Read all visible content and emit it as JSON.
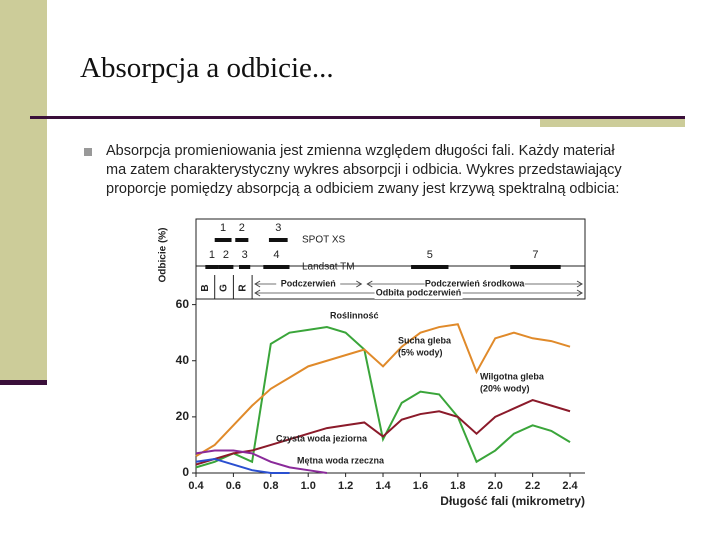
{
  "title": "Absorpcja a odbicie...",
  "bullet": [
    "Absorpcja promieniowania jest zmienna względem długości fali. Każdy materiał",
    "ma zatem charakterystyczny wykres absorpcji i odbicia. Wykres przedstawiający",
    "proporcje pomiędzy absorpcją a odbiciem zwany jest krzywą spektralną odbicia:"
  ],
  "chart_data": {
    "type": "line",
    "xlabel": "Długość fali (mikrometry)",
    "ylabel": "Odbicie (%)",
    "x": [
      0.4,
      0.5,
      0.6,
      0.7,
      0.8,
      0.9,
      1.0,
      1.1,
      1.2,
      1.3,
      1.4,
      1.5,
      1.6,
      1.7,
      1.8,
      1.9,
      2.0,
      2.1,
      2.2,
      2.3,
      2.4
    ],
    "xlim": [
      0.4,
      2.48
    ],
    "ylim": [
      0,
      62
    ],
    "xticks": [
      0.4,
      0.6,
      0.8,
      {
        "value": 1.0,
        "label": "1.0"
      },
      1.2,
      1.4,
      1.6,
      1.8,
      {
        "value": 2.0,
        "label": "2.0"
      },
      2.2,
      2.4
    ],
    "yticks": [
      0,
      20,
      40,
      60
    ],
    "series": [
      {
        "name": "Roślinność",
        "color": "#3aa53a",
        "values": [
          2,
          4,
          7,
          4,
          46,
          50,
          51,
          52,
          50,
          44,
          12,
          25,
          29,
          28,
          20,
          4,
          8,
          14,
          17,
          15,
          11
        ]
      },
      {
        "name": "Sucha gleba",
        "note": "(5% wody)",
        "color": "#e08a2a",
        "values": [
          6,
          10,
          17,
          24,
          30,
          34,
          38,
          40,
          42,
          44,
          38,
          45,
          50,
          52,
          53,
          36,
          48,
          50,
          48,
          47,
          45
        ]
      },
      {
        "name": "Wilgotna gleba",
        "note": "(20% wody)",
        "color": "#8b1a2a",
        "values": [
          3,
          5,
          7,
          8,
          10,
          12,
          14,
          16,
          17,
          18,
          13,
          19,
          21,
          22,
          20,
          14,
          20,
          23,
          26,
          24,
          22
        ]
      },
      {
        "name": "Czysta woda jeziorna",
        "color": "#2a4fd0",
        "values": [
          4,
          5,
          3,
          1,
          0,
          0,
          null,
          null,
          null,
          null,
          null,
          null,
          null,
          null,
          null,
          null,
          null,
          null,
          null,
          null,
          null
        ]
      },
      {
        "name": "Mętna woda rzeczna",
        "color": "#8a2a9a",
        "values": [
          7,
          8,
          8,
          7,
          4,
          2,
          1,
          0,
          null,
          null,
          null,
          null,
          null,
          null,
          null,
          null,
          null,
          null,
          null,
          null,
          null
        ]
      }
    ],
    "bands": [
      {
        "sensor": "SPOT XS",
        "items": [
          {
            "label": "1",
            "start": 0.5,
            "end": 0.59
          },
          {
            "label": "2",
            "start": 0.61,
            "end": 0.68
          },
          {
            "label": "3",
            "start": 0.79,
            "end": 0.89
          }
        ]
      },
      {
        "sensor": "Landsat TM",
        "items": [
          {
            "label": "1",
            "start": 0.45,
            "end": 0.52
          },
          {
            "label": "2",
            "start": 0.52,
            "end": 0.6
          },
          {
            "label": "3",
            "start": 0.63,
            "end": 0.69
          },
          {
            "label": "4",
            "start": 0.76,
            "end": 0.9
          },
          {
            "label": "5",
            "start": 1.55,
            "end": 1.75
          },
          {
            "label": "7",
            "start": 2.08,
            "end": 2.35
          }
        ]
      }
    ],
    "colors": [
      {
        "label": "B",
        "start": 0.4,
        "end": 0.5
      },
      {
        "label": "G",
        "start": 0.5,
        "end": 0.6
      },
      {
        "label": "R",
        "start": 0.6,
        "end": 0.7
      }
    ],
    "regions": [
      {
        "label": "Podczerwień",
        "start": 0.7,
        "end": 1.3
      },
      {
        "label": "Podczerwień środkowa",
        "start": 1.3,
        "end": 2.48
      },
      {
        "label": "Odbita podczerwień",
        "start": 0.7,
        "end": 2.48
      }
    ]
  }
}
